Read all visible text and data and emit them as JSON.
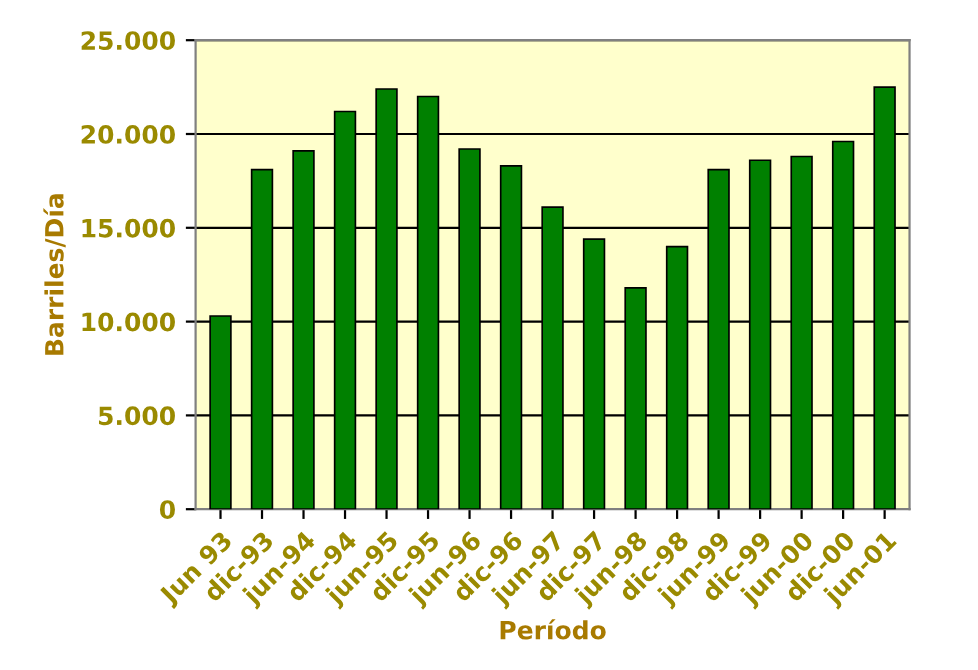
{
  "chart_data": {
    "type": "bar",
    "xlabel": "Período",
    "ylabel": "Barriles/Día",
    "categories": [
      "Jun 93",
      "dic-93",
      "jun-94",
      "dic-94",
      "jun-95",
      "dic-95",
      "jun-96",
      "dic-96",
      "jun-97",
      "dic-97",
      "jun-98",
      "dic-98",
      "jun-99",
      "dic-99",
      "jun-00",
      "dic-00",
      "jun-01"
    ],
    "values": [
      10300,
      18100,
      19100,
      21200,
      22400,
      22000,
      19200,
      18300,
      16100,
      14400,
      11800,
      14000,
      18100,
      18600,
      18800,
      19600,
      22500
    ],
    "color": "#008000",
    "ylim": [
      0,
      25000
    ],
    "yticks": [
      {
        "value": 0,
        "label": "0"
      },
      {
        "value": 5000,
        "label": "5.000"
      },
      {
        "value": 10000,
        "label": "10.000"
      },
      {
        "value": 15000,
        "label": "15.000"
      },
      {
        "value": 20000,
        "label": "20.000"
      },
      {
        "value": 25000,
        "label": "25.000"
      }
    ],
    "grid": "y"
  }
}
